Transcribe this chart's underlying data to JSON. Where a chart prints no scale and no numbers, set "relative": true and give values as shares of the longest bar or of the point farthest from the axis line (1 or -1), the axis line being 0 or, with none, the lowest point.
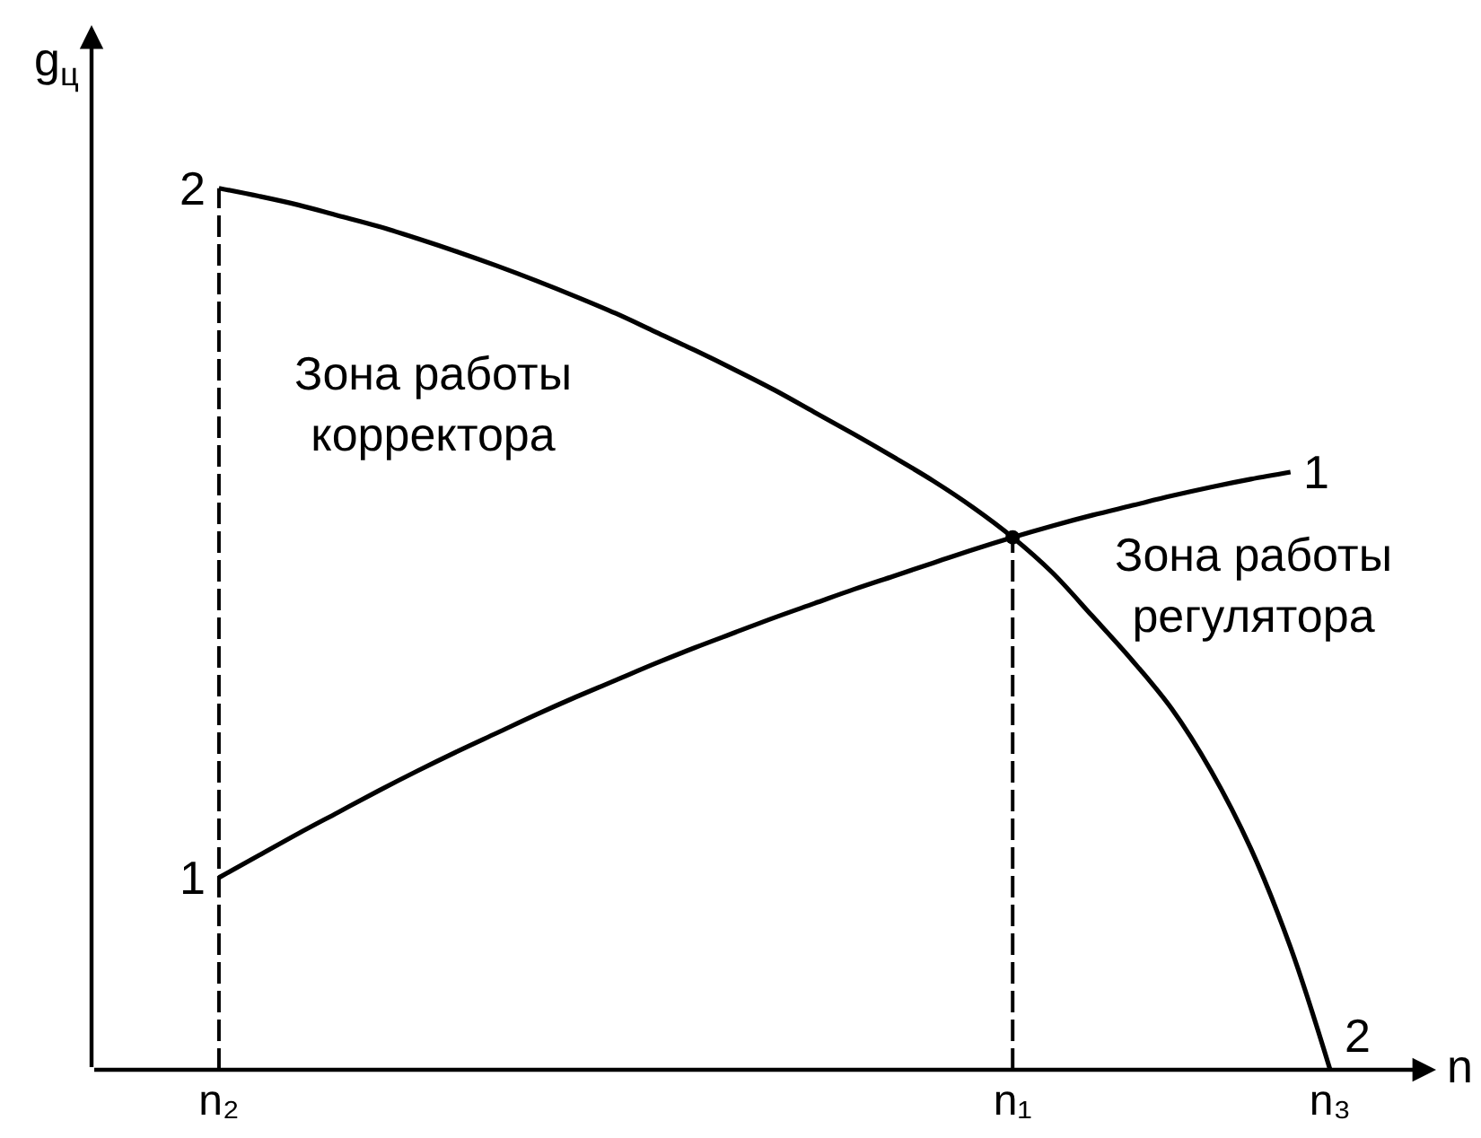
{
  "chart_data": {
    "type": "line",
    "relative": true,
    "xlabel": "n",
    "ylabel": "g$_{ц}$",
    "categories": [
      "n₂",
      null,
      null,
      null,
      null,
      null,
      null,
      null,
      null,
      null,
      null,
      null,
      null,
      null,
      null,
      null,
      null,
      null,
      null,
      null,
      "n₁",
      null,
      null,
      null,
      null,
      null,
      null,
      null,
      "n₃"
    ],
    "legend": false,
    "grid": false,
    "annotations": [
      "Зона работы\nкорректора",
      "Зона работы\nрегулятора"
    ],
    "ref_lines": [
      {
        "axis": "x",
        "value": "n₂",
        "color": "#000000",
        "line_style": "dashed"
      }
    ],
    "series": [
      {
        "name": "1",
        "color": "#000000",
        "line_style": "solid",
        "values": [
          0.218,
          0.243,
          0.268,
          0.292,
          0.316,
          0.339,
          0.361,
          0.382,
          0.403,
          0.423,
          0.442,
          0.461,
          0.479,
          0.496,
          0.513,
          0.529,
          0.545,
          0.56,
          0.575,
          0.59,
          0.604,
          0.617,
          0.629,
          0.64,
          0.651,
          0.661,
          0.67,
          0.678,
          null
        ]
      },
      {
        "name": "2",
        "color": "#000000",
        "line_style": "solid",
        "values": [
          1,
          0.991,
          0.981,
          0.969,
          0.957,
          0.943,
          0.928,
          0.912,
          0.895,
          0.877,
          0.858,
          0.837,
          0.816,
          0.794,
          0.771,
          0.746,
          0.721,
          0.695,
          0.668,
          0.638,
          0.604,
          0.564,
          0.515,
          0.465,
          0.41,
          0.339,
          0.251,
          0.139,
          0
        ]
      },
      {
        "type": "lollipop",
        "marker": "circle",
        "line_style": "dashed",
        "color": "#000000",
        "x": [
          "n₁"
        ],
        "values": [
          0.604
        ]
      }
    ]
  }
}
